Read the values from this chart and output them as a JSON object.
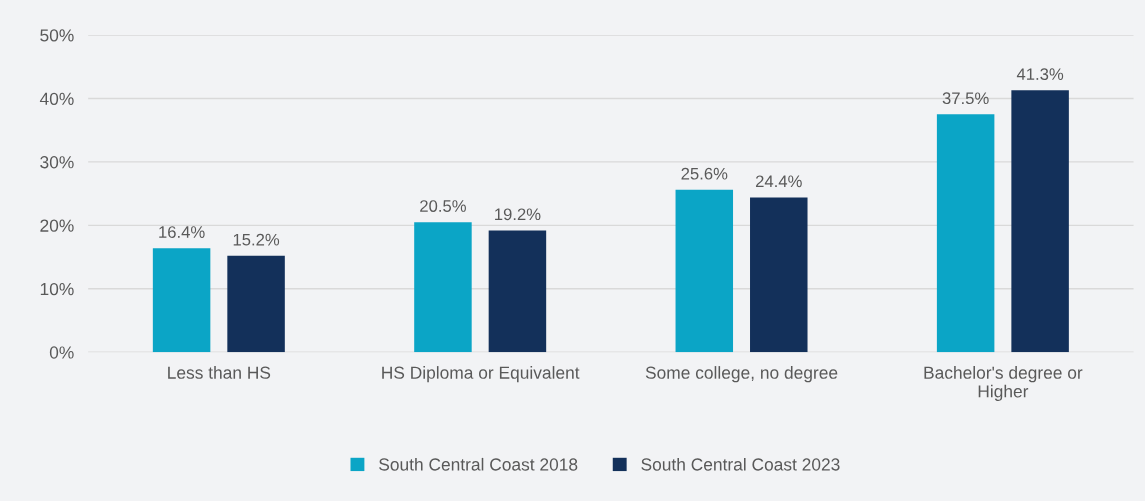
{
  "chart_data": {
    "type": "bar",
    "categories": [
      "Less than HS",
      "HS Diploma or Equivalent",
      "Some college, no degree",
      "Bachelor's degree or\nHigher"
    ],
    "series": [
      {
        "name": "South Central Coast 2018",
        "color": "#0ba5c6",
        "values": [
          16.4,
          20.5,
          25.6,
          37.5
        ],
        "value_labels": [
          "16.4%",
          "20.5%",
          "25.6%",
          "37.5%"
        ]
      },
      {
        "name": "South Central Coast 2023",
        "color": "#13305a",
        "values": [
          15.2,
          19.2,
          24.4,
          41.3
        ],
        "value_labels": [
          "15.2%",
          "19.2%",
          "24.4%",
          "41.3%"
        ]
      }
    ],
    "ylim": [
      0,
      50
    ],
    "yticks": [
      {
        "value": 0,
        "label": "0%"
      },
      {
        "value": 10,
        "label": "10%"
      },
      {
        "value": 20,
        "label": "20%"
      },
      {
        "value": 30,
        "label": "30%"
      },
      {
        "value": 40,
        "label": "40%"
      },
      {
        "value": 50,
        "label": "50%"
      }
    ],
    "grid": "y",
    "legend": "bottom"
  }
}
